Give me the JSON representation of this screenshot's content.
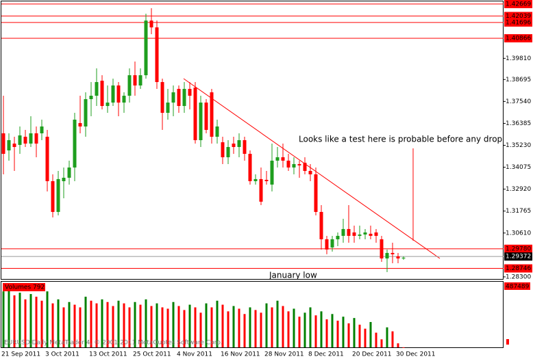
{
  "chart_data": {
    "type": "candlestick",
    "categories": [
      "21 Sep 2011",
      null,
      null,
      null,
      null,
      null,
      null,
      null,
      "3 Oct 2011",
      null,
      null,
      null,
      null,
      null,
      null,
      null,
      "13 Oct 2011",
      null,
      null,
      null,
      null,
      null,
      null,
      null,
      "25 Oct 2011",
      null,
      null,
      null,
      null,
      null,
      null,
      null,
      "4 Nov 2011",
      null,
      null,
      null,
      null,
      null,
      null,
      null,
      "16 Nov 2011",
      null,
      null,
      null,
      null,
      null,
      null,
      null,
      "28 Nov 2011",
      null,
      null,
      null,
      null,
      null,
      null,
      null,
      "8 Dec 2011",
      null,
      null,
      null,
      null,
      null,
      null,
      null,
      "20 Dec 2011",
      null,
      null,
      null,
      null,
      null,
      null,
      null,
      "30 Dec 2011",
      null
    ],
    "open": [
      1.3586,
      1.3496,
      1.3532,
      1.3525,
      1.3568,
      1.3532,
      1.3586,
      1.3586,
      1.3568,
      1.3334,
      1.3172,
      1.3334,
      1.3352,
      1.3406,
      1.364,
      1.3622,
      1.3766,
      1.3784,
      1.3863,
      1.373,
      1.3748,
      1.3838,
      1.3748,
      1.3784,
      1.3892,
      1.3838,
      1.3892,
      1.418,
      1.4144,
      1.3856,
      1.3694,
      1.3748,
      1.382,
      1.373,
      1.382,
      1.3827,
      1.355,
      1.3748,
      1.3802,
      1.3568,
      1.3539,
      1.346,
      1.3532,
      1.3514,
      1.355,
      1.3478,
      1.3334,
      1.3345,
      1.3341,
      1.3316,
      1.3442,
      1.346,
      1.3442,
      1.3406,
      1.3424,
      1.3431,
      1.3388,
      1.337,
      1.3172,
      1.3028,
      1.2985,
      1.3028,
      1.3046,
      1.3082,
      1.3064,
      1.3046,
      1.3053,
      1.3057,
      1.3064,
      1.3028,
      1.2927,
      1.2956,
      1.2938,
      1.2927
    ],
    "high": [
      1.3784,
      1.3586,
      1.3568,
      1.3622,
      1.3604,
      1.3676,
      1.3622,
      1.3658,
      1.3604,
      1.337,
      1.3388,
      1.3406,
      1.3442,
      1.3694,
      1.3784,
      1.3802,
      1.3856,
      1.3928,
      1.3892,
      1.3838,
      1.3874,
      1.3856,
      1.3802,
      1.3928,
      1.3964,
      1.3928,
      1.4216,
      1.4245,
      1.418,
      1.3874,
      1.382,
      1.3838,
      1.3838,
      1.3856,
      1.3856,
      1.3856,
      1.3784,
      1.3766,
      1.382,
      1.3658,
      1.3568,
      1.355,
      1.3568,
      1.3586,
      1.3568,
      1.3496,
      1.337,
      1.3406,
      1.3388,
      1.3532,
      1.3514,
      1.3532,
      1.3478,
      1.346,
      1.3442,
      1.346,
      1.3424,
      1.3406,
      1.3208,
      1.3046,
      1.3046,
      1.3064,
      1.3136,
      1.3208,
      1.31,
      1.31,
      1.3082,
      1.31,
      1.3082,
      1.3046,
      1.2974,
      1.301,
      1.2956,
      1.2938
    ],
    "low": [
      1.337,
      1.3442,
      1.3388,
      1.3478,
      1.3514,
      1.3514,
      1.346,
      1.355,
      1.328,
      1.3143,
      1.3154,
      1.3244,
      1.3316,
      1.3334,
      1.3586,
      1.3568,
      1.3676,
      1.373,
      1.3712,
      1.3694,
      1.373,
      1.3676,
      1.3694,
      1.3748,
      1.3784,
      1.382,
      1.3874,
      1.4108,
      1.382,
      1.3604,
      1.3658,
      1.3676,
      1.3694,
      1.3694,
      1.3712,
      1.3532,
      1.3514,
      1.3586,
      1.3532,
      1.3532,
      1.3424,
      1.3424,
      1.3478,
      1.346,
      1.3442,
      1.3316,
      1.3316,
      1.3208,
      1.3316,
      1.328,
      1.3406,
      1.3406,
      1.3388,
      1.337,
      1.3352,
      1.337,
      1.3334,
      1.3154,
      1.2974,
      1.2949,
      1.2963,
      1.2992,
      1.301,
      1.301,
      1.301,
      1.3028,
      1.3028,
      1.3028,
      1.301,
      1.2909,
      1.2855,
      1.2902,
      1.2902,
      1.292
    ],
    "close": [
      1.3478,
      1.355,
      1.3514,
      1.3575,
      1.3532,
      1.3586,
      1.3532,
      1.3622,
      1.3334,
      1.3172,
      1.3345,
      1.3352,
      1.3406,
      1.3658,
      1.3622,
      1.3766,
      1.3784,
      1.3856,
      1.373,
      1.3748,
      1.3838,
      1.3748,
      1.3784,
      1.3892,
      1.3838,
      1.3892,
      1.418,
      1.4144,
      1.3856,
      1.3694,
      1.3748,
      1.3802,
      1.373,
      1.382,
      1.3784,
      1.355,
      1.3748,
      1.3604,
      1.3568,
      1.3622,
      1.346,
      1.3514,
      1.3514,
      1.355,
      1.3478,
      1.3334,
      1.3345,
      1.3226,
      1.3334,
      1.3442,
      1.346,
      1.3442,
      1.3406,
      1.3424,
      1.3417,
      1.3388,
      1.337,
      1.3172,
      1.3028,
      1.2974,
      1.3028,
      1.3046,
      1.3082,
      1.3046,
      1.3046,
      1.3053,
      1.3064,
      1.3046,
      1.3046,
      1.2927,
      1.2956,
      1.2949,
      1.2927,
      1.2931
    ],
    "up_color": "#1e9e1e",
    "down_color": "#ff0000",
    "ylim": [
      1.2819,
      1.4281
    ],
    "yticks": [
      {
        "value": 1.3981,
        "label": "1.39810"
      },
      1.38695,
      {
        "value": 1.3754,
        "label": "1.37540"
      },
      1.36385,
      {
        "value": 1.3523,
        "label": "1.35230"
      },
      1.34075,
      {
        "value": 1.3292,
        "label": "1.32920"
      },
      1.31765,
      {
        "value": 1.3061,
        "label": "1.30610"
      },
      {
        "value": 1.283,
        "label": "1.28300"
      }
    ],
    "levels": [
      1.42669,
      1.42039,
      1.41696,
      1.40866,
      {
        "value": 1.2978,
        "label": "1.29780"
      },
      1.28746
    ],
    "level_color": "#ff0000",
    "last_price": 1.29372,
    "annotations": [
      "Looks like a test here is probable before any drop",
      "January low"
    ],
    "volume": {
      "title": "Volumes 792",
      "values": [
        420000,
        440000,
        390000,
        410000,
        360000,
        400000,
        380000,
        350000,
        420000,
        330000,
        360000,
        300000,
        340000,
        320000,
        300000,
        380000,
        350000,
        330000,
        360000,
        340000,
        310000,
        350000,
        330000,
        300000,
        340000,
        320000,
        360000,
        310000,
        330000,
        300000,
        290000,
        340000,
        310000,
        280000,
        320000,
        300000,
        260000,
        330000,
        300000,
        350000,
        320000,
        270000,
        310000,
        290000,
        250000,
        300000,
        280000,
        260000,
        330000,
        300000,
        350000,
        310000,
        270000,
        290000,
        230000,
        260000,
        300000,
        240000,
        270000,
        210000,
        250000,
        200000,
        230000,
        180000,
        220000,
        170000,
        140000,
        190000,
        110000,
        60000,
        150000,
        120000,
        30000,
        792
      ],
      "ylim": [
        0,
        487489
      ],
      "yticks": [
        487489
      ],
      "up_color": "#008000",
      "down_color": "#ff0000"
    },
    "footer": "EURUSD,Daily  MetaTrader 4, © 2001-2011 MetaQuotes Software Corp."
  }
}
